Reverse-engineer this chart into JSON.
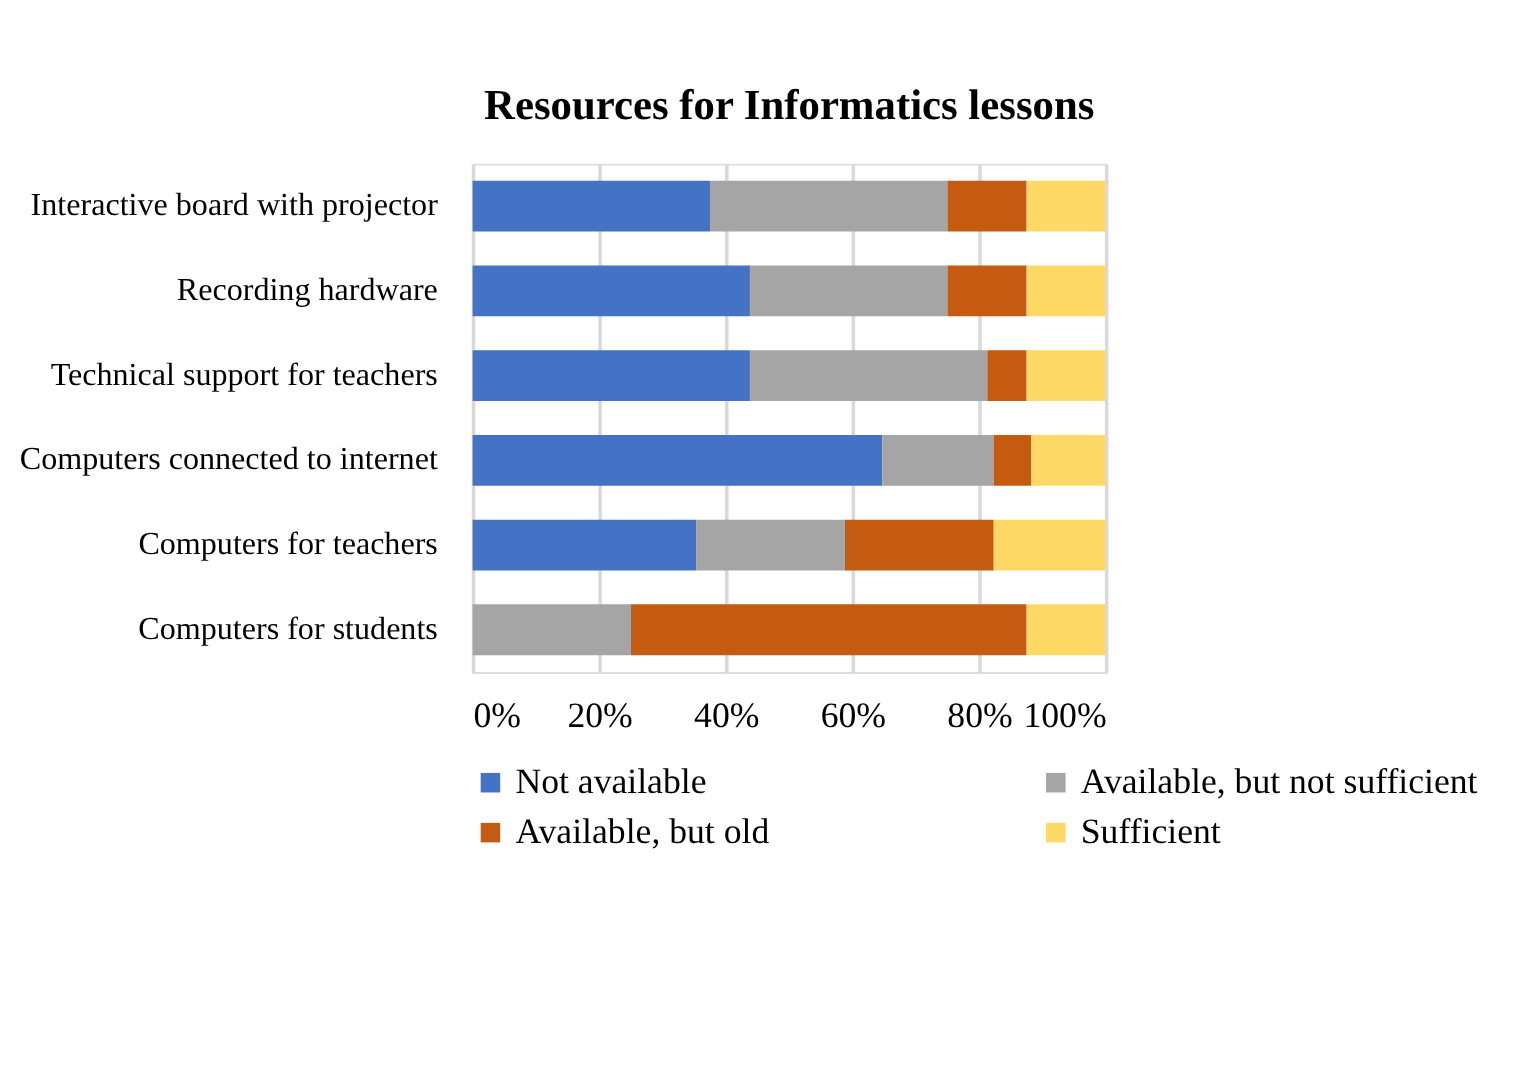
{
  "chart_data": {
    "type": "bar",
    "orientation": "horizontal",
    "stacked": true,
    "title": "Resources for Informatics lessons",
    "categories": [
      "Interactive board with projector",
      "Recording hardware",
      "Technical support for teachers",
      "Computers connected to internet",
      "Computers for teachers",
      "Computers for students"
    ],
    "series": [
      {
        "name": "Not available",
        "color": "#4472c4",
        "values": [
          37.5,
          43.8,
          43.8,
          64.7,
          35.3,
          0
        ]
      },
      {
        "name": "Available, but not sufficient",
        "color": "#a5a5a5",
        "values": [
          37.5,
          31.2,
          37.5,
          17.6,
          23.5,
          25
        ]
      },
      {
        "name": "Available, but old",
        "color": "#c55a11",
        "values": [
          12.5,
          12.5,
          6.2,
          5.9,
          23.5,
          62.5
        ]
      },
      {
        "name": "Sufficient",
        "color": "#ffd966",
        "values": [
          12.5,
          12.5,
          12.5,
          11.8,
          17.6,
          12.5
        ]
      }
    ],
    "xlim": [
      0,
      100
    ],
    "xticks": [
      {
        "value": 0,
        "label": "0%"
      },
      {
        "value": 20,
        "label": "20%"
      },
      {
        "value": 40,
        "label": "40%"
      },
      {
        "value": 60,
        "label": "60%"
      },
      {
        "value": 80,
        "label": "80%"
      },
      {
        "value": 100,
        "label": "100%"
      }
    ],
    "grid": "x",
    "legend": "bottom"
  }
}
